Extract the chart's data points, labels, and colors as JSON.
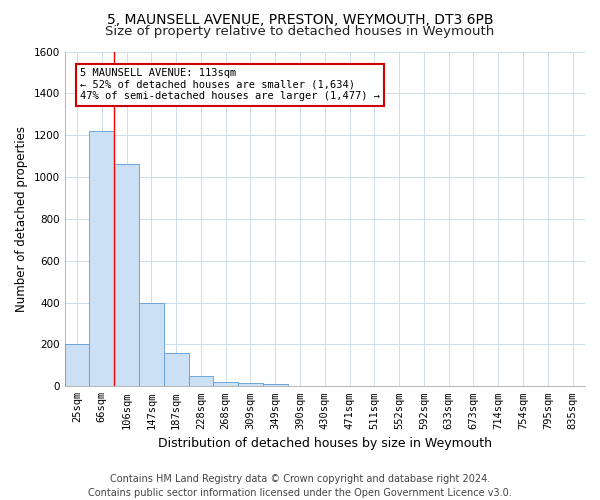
{
  "title1": "5, MAUNSELL AVENUE, PRESTON, WEYMOUTH, DT3 6PB",
  "title2": "Size of property relative to detached houses in Weymouth",
  "xlabel": "Distribution of detached houses by size in Weymouth",
  "ylabel": "Number of detached properties",
  "categories": [
    "25sqm",
    "66sqm",
    "106sqm",
    "147sqm",
    "187sqm",
    "228sqm",
    "268sqm",
    "309sqm",
    "349sqm",
    "390sqm",
    "430sqm",
    "471sqm",
    "511sqm",
    "552sqm",
    "592sqm",
    "633sqm",
    "673sqm",
    "714sqm",
    "754sqm",
    "795sqm",
    "835sqm"
  ],
  "values": [
    200,
    1220,
    1060,
    400,
    160,
    50,
    20,
    15,
    10,
    0,
    0,
    0,
    0,
    0,
    0,
    0,
    0,
    0,
    0,
    0,
    0
  ],
  "bar_color": "#cce0f5",
  "bar_edge_color": "#5b9bd5",
  "red_line_x": 1.5,
  "annotation_line1": "5 MAUNSELL AVENUE: 113sqm",
  "annotation_line2": "← 52% of detached houses are smaller (1,634)",
  "annotation_line3": "47% of semi-detached houses are larger (1,477) →",
  "ylim": [
    0,
    1600
  ],
  "yticks": [
    0,
    200,
    400,
    600,
    800,
    1000,
    1200,
    1400,
    1600
  ],
  "footer1": "Contains HM Land Registry data © Crown copyright and database right 2024.",
  "footer2": "Contains public sector information licensed under the Open Government Licence v3.0.",
  "bg_color": "#ffffff",
  "grid_color": "#c8d8e8",
  "annotation_box_color": "#ffffff",
  "annotation_box_edge": "#cc0000",
  "title1_fontsize": 10,
  "title2_fontsize": 9.5,
  "tick_fontsize": 7.5,
  "ylabel_fontsize": 8.5,
  "xlabel_fontsize": 9,
  "footer_fontsize": 7,
  "annotation_fontsize": 7.5
}
